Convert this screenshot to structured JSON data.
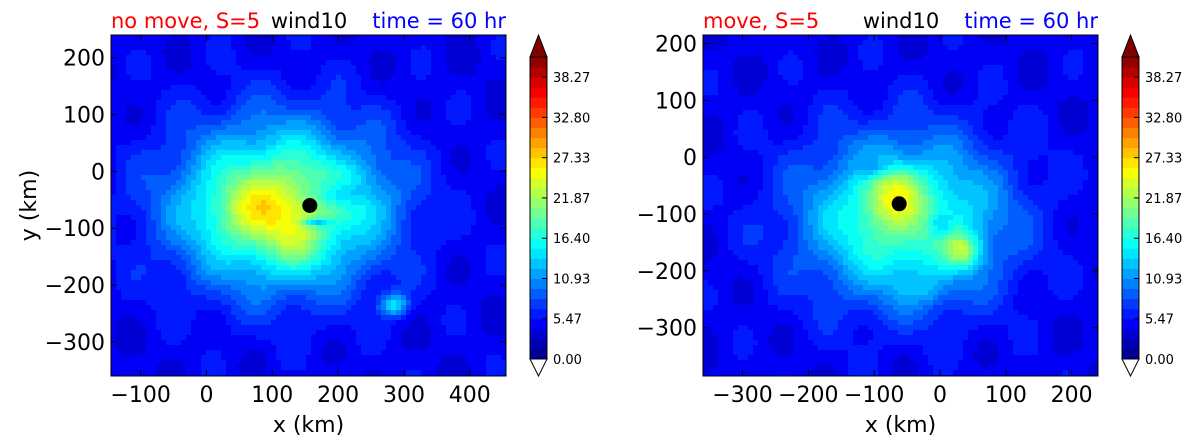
{
  "chart_data": [
    {
      "type": "heatmap",
      "variable": "wind10",
      "title_left": "no move, S=5",
      "title_center": "wind10",
      "title_right": "time = 60 hr",
      "title_colors": {
        "left": "#ff0000",
        "center": "#000000",
        "right": "#0000ff"
      },
      "xlabel": "x (km)",
      "ylabel": "y (km)",
      "xlim": [
        -145,
        455
      ],
      "ylim": [
        -360,
        240
      ],
      "xticks": [
        -100,
        0,
        100,
        200,
        300,
        400
      ],
      "yticks": [
        200,
        100,
        0,
        -100,
        -200,
        -300
      ],
      "center_marker": [
        157,
        -60
      ],
      "background_level": 4.5,
      "features": [
        {
          "x": 112,
          "y": -60,
          "level": 18.0,
          "sx": 155,
          "sy": 140
        },
        {
          "x": 80,
          "y": -70,
          "level": 4.5,
          "sx": 70,
          "sy": 55
        },
        {
          "x": 140,
          "y": -135,
          "level": 3.0,
          "sx": 45,
          "sy": 45
        },
        {
          "x": 230,
          "y": -45,
          "level": 2.5,
          "sx": 55,
          "sy": 45
        },
        {
          "x": 285,
          "y": -235,
          "level": 9.0,
          "sx": 22,
          "sy": 20
        },
        {
          "x": 165,
          "y": -90,
          "level": -8.0,
          "sx": 22,
          "sy": 8
        },
        {
          "x": 200,
          "y": -40,
          "level": -6.0,
          "sx": 40,
          "sy": 25
        }
      ]
    },
    {
      "type": "heatmap",
      "variable": "wind10",
      "title_left": "move, S=5",
      "title_center": "wind10",
      "title_right": "time = 60 hr",
      "title_colors": {
        "left": "#ff0000",
        "center": "#000000",
        "right": "#0000ff"
      },
      "xlabel": "x (km)",
      "ylabel": "",
      "xlim": [
        -360,
        240
      ],
      "ylim": [
        -385,
        215
      ],
      "xticks": [
        -300,
        -200,
        -100,
        0,
        100,
        200
      ],
      "yticks": [
        200,
        100,
        0,
        -100,
        -200,
        -300
      ],
      "center_marker": [
        -62,
        -82
      ],
      "background_level": 4.5,
      "features": [
        {
          "x": -55,
          "y": -110,
          "level": 15.0,
          "sx": 150,
          "sy": 140
        },
        {
          "x": -75,
          "y": -70,
          "level": 7.0,
          "sx": 40,
          "sy": 45
        },
        {
          "x": 35,
          "y": -165,
          "level": 9.0,
          "sx": 28,
          "sy": 30
        },
        {
          "x": -60,
          "y": -40,
          "level": 2.0,
          "sx": 35,
          "sy": 25
        },
        {
          "x": -20,
          "y": -235,
          "level": 2.0,
          "sx": 40,
          "sy": 25
        },
        {
          "x": -100,
          "y": -20,
          "level": -4.0,
          "sx": 25,
          "sy": 20
        },
        {
          "x": 0,
          "y": -120,
          "level": -4.0,
          "sx": 18,
          "sy": 22
        }
      ]
    }
  ],
  "colorbar": {
    "min": 0.0,
    "max": 41.0,
    "ticks": [
      "0.00",
      "5.47",
      "10.93",
      "16.40",
      "21.87",
      "27.33",
      "32.80",
      "38.27"
    ],
    "extend": "both",
    "colormap": "jet"
  },
  "marker_color": "#000000"
}
